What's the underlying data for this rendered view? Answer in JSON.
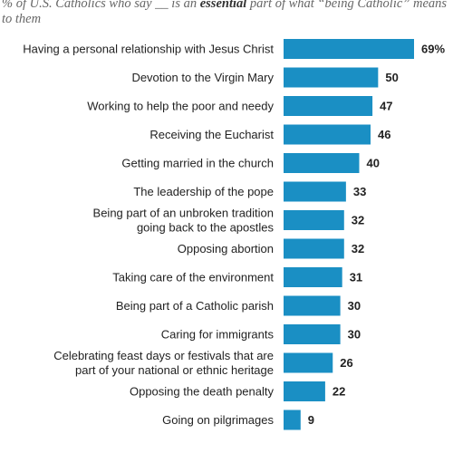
{
  "subtitle": {
    "before": "% of U.S. Catholics who say __ is an ",
    "emphasis": "essential",
    "after": " part of what “being Catholic” means to them"
  },
  "chart_data": {
    "type": "bar",
    "orientation": "horizontal",
    "categories": [
      "Having a personal relationship with Jesus Christ",
      "Devotion to the Virgin Mary",
      "Working to help the poor and needy",
      "Receiving the Eucharist",
      "Getting married in the church",
      "The leadership of the pope",
      "Being part of an unbroken tradition going back to the apostles",
      "Opposing abortion",
      "Taking care of the environment",
      "Being part of a Catholic parish",
      "Caring for immigrants",
      "Celebrating feast days or festivals that are part of your national or ethnic heritage",
      "Opposing the death penalty",
      "Going on pilgrimages"
    ],
    "category_lines": [
      [
        "Having a personal relationship with Jesus Christ"
      ],
      [
        "Devotion to the Virgin Mary"
      ],
      [
        "Working to help the poor and needy"
      ],
      [
        "Receiving the Eucharist"
      ],
      [
        "Getting married in the church"
      ],
      [
        "The leadership of the pope"
      ],
      [
        "Being part of an unbroken tradition",
        "going back to the apostles"
      ],
      [
        "Opposing abortion"
      ],
      [
        "Taking care of the environment"
      ],
      [
        "Being part of a Catholic parish"
      ],
      [
        "Caring for immigrants"
      ],
      [
        "Celebrating feast days or festivals that are",
        "part of your national or ethnic heritage"
      ],
      [
        "Opposing the death penalty"
      ],
      [
        "Going on pilgrimages"
      ]
    ],
    "values": [
      69,
      50,
      47,
      46,
      40,
      33,
      32,
      32,
      31,
      30,
      30,
      26,
      22,
      9
    ],
    "value_labels": [
      "69%",
      "50",
      "47",
      "46",
      "40",
      "33",
      "32",
      "32",
      "31",
      "30",
      "30",
      "26",
      "22",
      "9"
    ],
    "xlim": [
      0,
      69
    ],
    "bar_color": "#1a8fc4",
    "grid": false,
    "legend": "none"
  }
}
